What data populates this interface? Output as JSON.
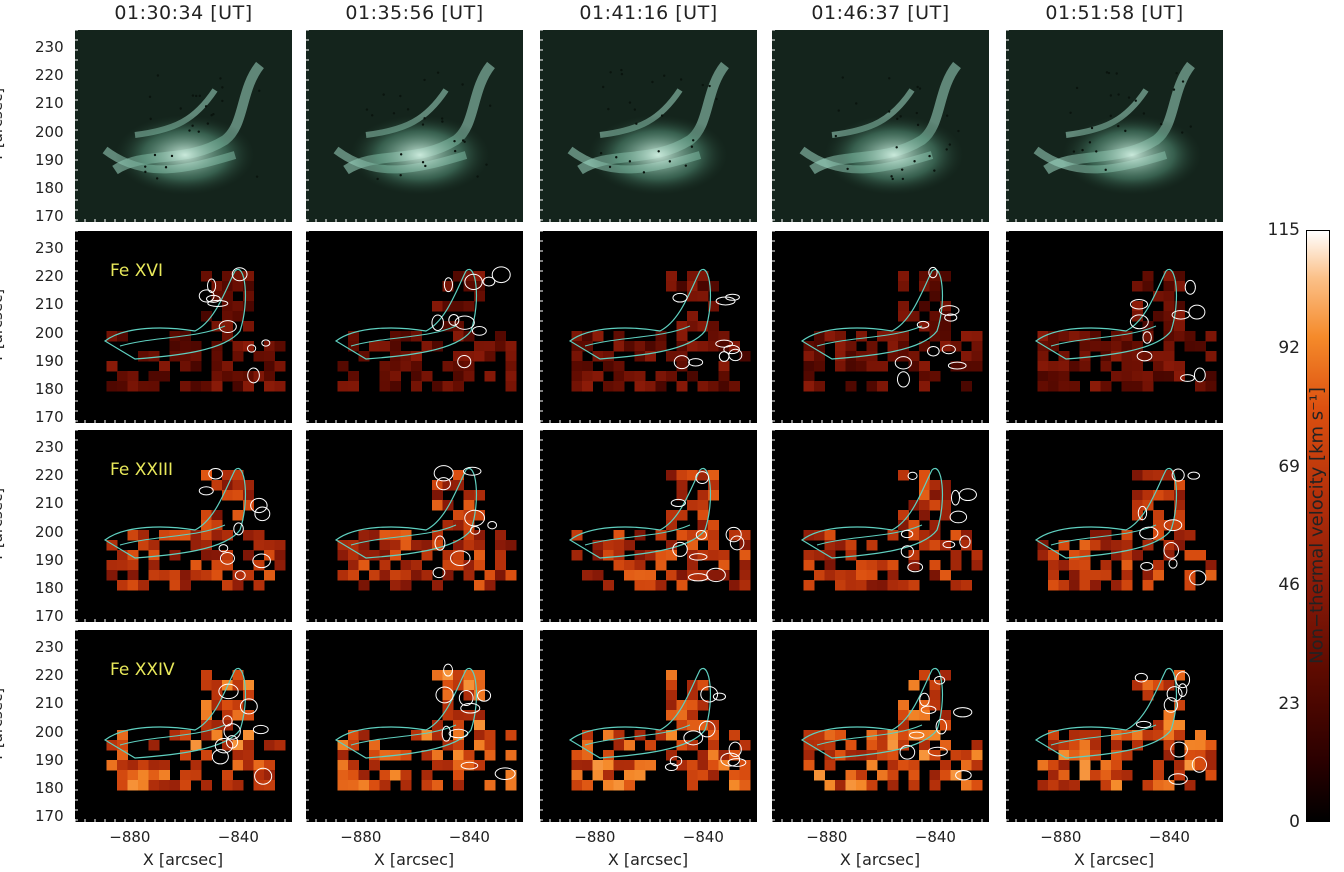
{
  "chart_data": {
    "type": "heatmap",
    "times": [
      "01:30:34 [UT]",
      "01:35:56 [UT]",
      "01:41:16 [UT]",
      "01:46:37 [UT]",
      "01:51:58 [UT]"
    ],
    "rows": [
      {
        "label": "",
        "kind": "image"
      },
      {
        "label": "Fe XVI",
        "kind": "map"
      },
      {
        "label": "Fe XXIII",
        "kind": "map"
      },
      {
        "label": "Fe XXIV",
        "kind": "map"
      }
    ],
    "xlabel": "X [arcsec]",
    "ylabel": "Y [arcsec]",
    "xticks": [
      -880,
      -840
    ],
    "yticks": [
      230,
      220,
      210,
      200,
      190,
      180,
      170
    ],
    "xlim": [
      -900,
      -820
    ],
    "ylim": [
      168,
      236
    ],
    "colorbar": {
      "label": "Non−thermal velocity [km s⁻¹]",
      "ticks": [
        0,
        23,
        46,
        69,
        92,
        115
      ],
      "range": [
        0,
        115
      ]
    },
    "colors": {
      "image_bg": "#14241c",
      "image_glow": "#cfeee0",
      "contour_cyan": "#5fd0c0",
      "contour_white": "#ffffff",
      "ion_label": "#e8e85a"
    }
  }
}
